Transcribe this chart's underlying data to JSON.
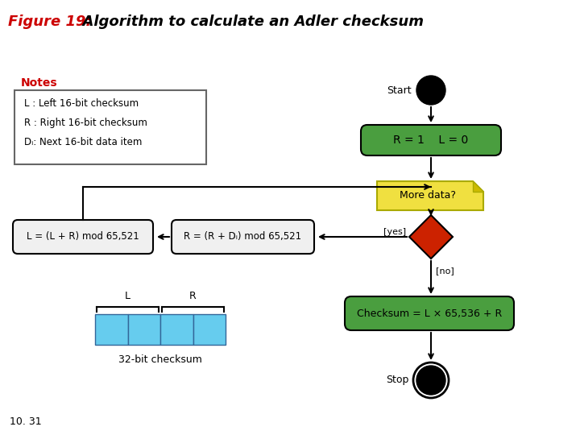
{
  "title_fig": "Figure 19:",
  "title_text": "  Algorithm to calculate an Adler checksum",
  "title_color_fig": "#cc0000",
  "title_color_text": "#000000",
  "bg_color": "#ffffff",
  "green_color": "#4a9e3f",
  "yellow_color": "#f0e040",
  "red_color": "#cc2200",
  "blue_color": "#66ccee",
  "notes_color": "#cc0000",
  "page_num": "10. 31",
  "notes_label": "Notes",
  "notes_lines": [
    "L : Left 16-bit checksum",
    "R : Right 16-bit checksum",
    "Dᵢ: Next 16-bit data item"
  ],
  "start_label": "Start",
  "stop_label": "Stop",
  "init_label": "R = 1    L = 0",
  "more_data_label": "More data?",
  "yes_label": "[yes]",
  "no_label": "[no]",
  "r_update_label": "R = (R + Dᵢ) mod 65,521",
  "l_update_label": "L = (L + R) mod 65,521",
  "checksum_label": "Checksum = L × 65,536 + R",
  "l_bracket": "L",
  "r_bracket": "R",
  "checksum_32bit": "32-bit checksum"
}
